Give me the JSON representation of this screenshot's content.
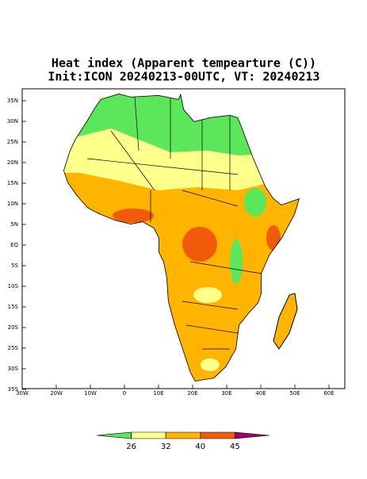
{
  "map": {
    "title": "Heat index (Apparent tempearture (C))",
    "subtitle": "Init:ICON 20240213-00UTC, VT: 20240213",
    "lon_ticks": [
      {
        "value": -30,
        "label": "30W"
      },
      {
        "value": -20,
        "label": "20W"
      },
      {
        "value": -10,
        "label": "10W"
      },
      0,
      {
        "value": 10,
        "label": "10E"
      },
      {
        "value": 20,
        "label": "20E"
      },
      {
        "value": 30,
        "label": "30E"
      },
      {
        "value": 40,
        "label": "40E"
      },
      {
        "value": 50,
        "label": "50E"
      },
      {
        "value": 60,
        "label": "60E"
      }
    ],
    "lat_ticks": [
      {
        "value": 35,
        "label": "35N"
      },
      {
        "value": 30,
        "label": "30N"
      },
      {
        "value": 25,
        "label": "25N"
      },
      {
        "value": 20,
        "label": "20N"
      },
      {
        "value": 15,
        "label": "15N"
      },
      {
        "value": 10,
        "label": "10N"
      },
      {
        "value": 5,
        "label": "5N"
      },
      {
        "value": 0,
        "label": "EQ"
      },
      {
        "value": -5,
        "label": "5S"
      },
      {
        "value": -10,
        "label": "10S"
      },
      {
        "value": -15,
        "label": "15S"
      },
      {
        "value": -20,
        "label": "20S"
      },
      {
        "value": -25,
        "label": "25S"
      },
      {
        "value": -30,
        "label": "30S"
      },
      {
        "value": -35,
        "label": "35S"
      }
    ],
    "colorbar": {
      "colors": [
        "#5ce65c",
        "#ffff8c",
        "#ffb400",
        "#f05a0a",
        "#a00070"
      ],
      "ticks": [
        26,
        32,
        40,
        45
      ]
    }
  }
}
